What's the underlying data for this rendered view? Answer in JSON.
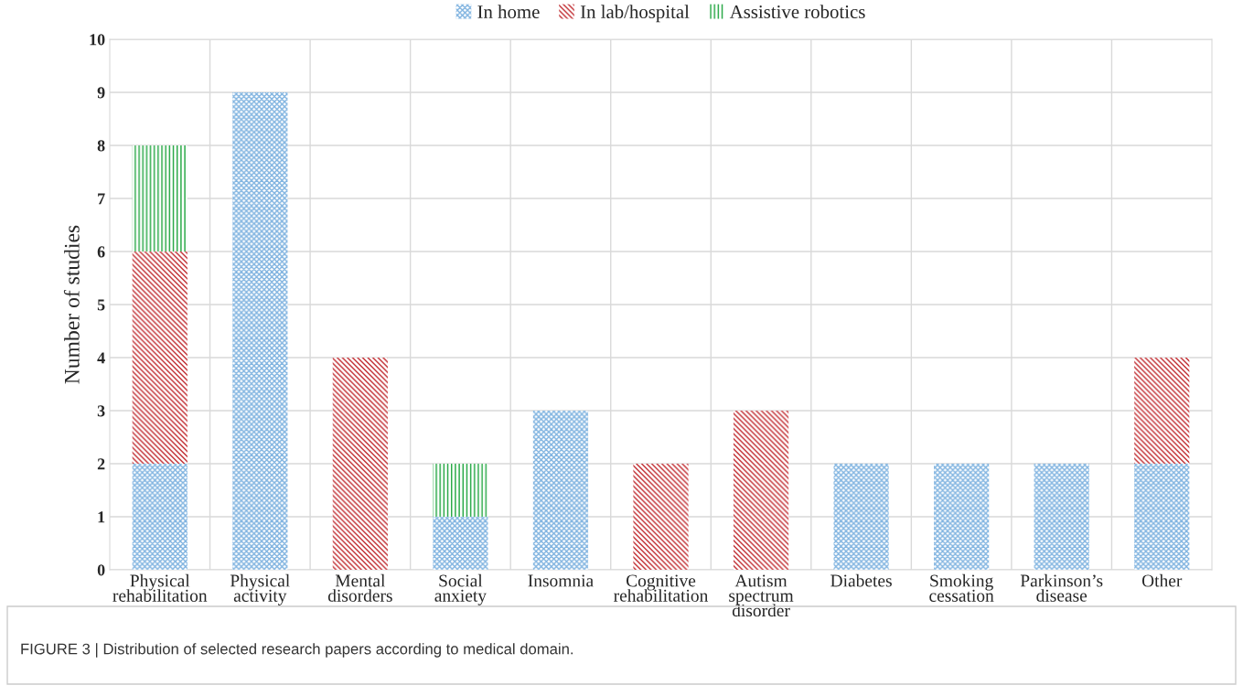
{
  "chart_data": {
    "type": "bar",
    "stacked": true,
    "ylabel": "Number of studies",
    "categories": [
      "Physical\nrehabilitation",
      "Physical\nactivity",
      "Mental\ndisorders",
      "Social\nanxiety",
      "Insomnia",
      "Cognitive\nrehabilitation",
      "Autism\nspectrum\ndisorder",
      "Diabetes",
      "Smoking\ncessation",
      "Parkinson’s\ndisease",
      "Other"
    ],
    "series": [
      {
        "name": "In home",
        "color": "#7fb3e0",
        "values": [
          2,
          9,
          null,
          1,
          3,
          null,
          null,
          2,
          2,
          2,
          2
        ]
      },
      {
        "name": "In lab/hospital",
        "color": "#c0282d",
        "values": [
          4,
          null,
          4,
          null,
          null,
          2,
          3,
          null,
          null,
          null,
          2
        ]
      },
      {
        "name": "Assistive robotics",
        "color": "#1aa33a",
        "values": [
          2,
          null,
          null,
          1,
          null,
          null,
          null,
          null,
          null,
          null,
          null
        ]
      }
    ],
    "ylim": [
      0,
      10
    ],
    "yticks": [
      0,
      1,
      2,
      3,
      4,
      5,
      6,
      7,
      8,
      9,
      10
    ],
    "grid": true,
    "legend": "top",
    "annotations": [
      "FIGURE 3 | Distribution of selected research papers according to medical domain."
    ]
  }
}
